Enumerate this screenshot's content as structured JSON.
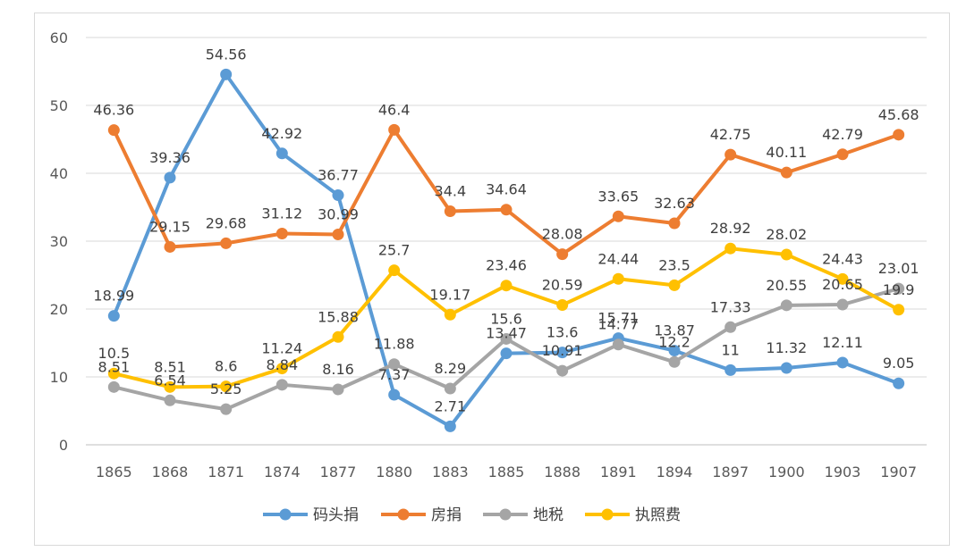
{
  "chart_data": {
    "type": "line",
    "title": "",
    "xlabel": "",
    "ylabel": "",
    "ylim": [
      0,
      60
    ],
    "yticks": [
      0,
      10,
      20,
      30,
      40,
      50,
      60
    ],
    "grid": true,
    "legend_position": "bottom",
    "categories": [
      "1865",
      "1868",
      "1871",
      "1874",
      "1877",
      "1880",
      "1883",
      "1885",
      "1888",
      "1891",
      "1894",
      "1897",
      "1900",
      "1903",
      "1907"
    ],
    "series": [
      {
        "name": "码头捐",
        "color": "#5B9BD5",
        "values": [
          18.99,
          39.36,
          54.56,
          42.92,
          36.77,
          7.37,
          2.71,
          13.47,
          13.6,
          15.71,
          13.87,
          11,
          11.32,
          12.11,
          9.05
        ]
      },
      {
        "name": "房捐",
        "color": "#ED7D31",
        "values": [
          46.36,
          29.15,
          29.68,
          31.12,
          30.99,
          46.4,
          34.4,
          34.64,
          28.08,
          33.65,
          32.63,
          42.75,
          40.11,
          42.79,
          45.68
        ]
      },
      {
        "name": "地税",
        "color": "#A5A5A5",
        "values": [
          8.51,
          6.54,
          5.25,
          8.84,
          8.16,
          11.88,
          8.29,
          15.6,
          10.91,
          14.77,
          12.2,
          17.33,
          20.55,
          20.65,
          23.01
        ]
      },
      {
        "name": "执照费",
        "color": "#FFC000",
        "values": [
          10.5,
          8.51,
          8.6,
          11.24,
          15.88,
          25.7,
          19.17,
          23.46,
          20.59,
          24.44,
          23.5,
          28.92,
          28.02,
          24.43,
          19.9
        ]
      }
    ]
  }
}
